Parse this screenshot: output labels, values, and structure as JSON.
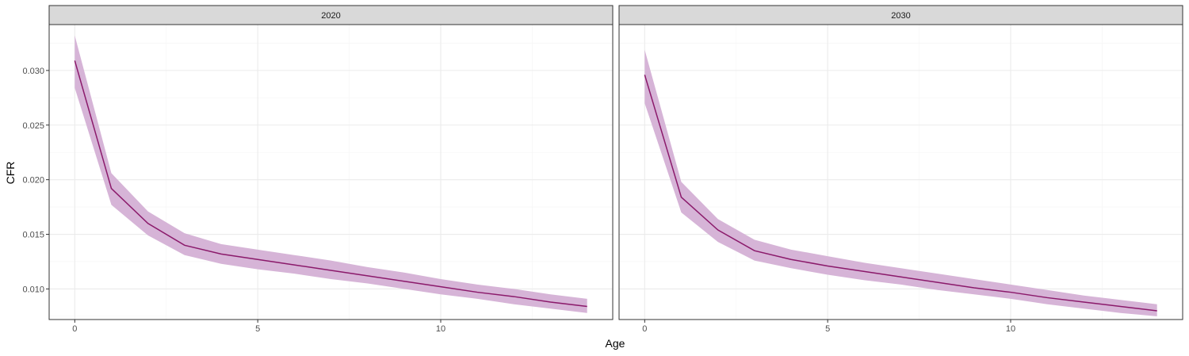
{
  "chart_data": {
    "type": "line",
    "xlabel": "Age",
    "ylabel": "CFR",
    "xlim": [
      -0.7,
      14.7
    ],
    "ylim": [
      0.0072,
      0.0342
    ],
    "x_ticks": [
      0,
      5,
      10
    ],
    "x_tick_labels": [
      "0",
      "5",
      "10"
    ],
    "y_ticks": [
      0.01,
      0.015,
      0.02,
      0.025,
      0.03
    ],
    "y_tick_labels": [
      "0.010",
      "0.015",
      "0.020",
      "0.025",
      "0.030"
    ],
    "grid": true,
    "legend": "none",
    "panels": [
      {
        "strip_label": "2020",
        "x": [
          0,
          1,
          2,
          3,
          4,
          5,
          6,
          7,
          8,
          9,
          10,
          11,
          12,
          13,
          14
        ],
        "mean": [
          0.0309,
          0.0192,
          0.016,
          0.014,
          0.0132,
          0.0127,
          0.0122,
          0.0117,
          0.0112,
          0.0107,
          0.0102,
          0.0097,
          0.0093,
          0.0088,
          0.0084
        ],
        "lower": [
          0.0284,
          0.0177,
          0.0149,
          0.0131,
          0.0123,
          0.0118,
          0.0114,
          0.0109,
          0.0105,
          0.01,
          0.0095,
          0.0091,
          0.0086,
          0.0082,
          0.0078
        ],
        "upper": [
          0.0332,
          0.0206,
          0.0171,
          0.0151,
          0.0141,
          0.0136,
          0.0131,
          0.0126,
          0.012,
          0.0115,
          0.0109,
          0.0104,
          0.01,
          0.0095,
          0.0091
        ]
      },
      {
        "strip_label": "2030",
        "x": [
          0,
          1,
          2,
          3,
          4,
          5,
          6,
          7,
          8,
          9,
          10,
          11,
          12,
          13,
          14
        ],
        "mean": [
          0.0296,
          0.0184,
          0.0154,
          0.0135,
          0.0127,
          0.0121,
          0.0116,
          0.0111,
          0.0106,
          0.0101,
          0.0097,
          0.0092,
          0.0088,
          0.0084,
          0.008
        ],
        "lower": [
          0.027,
          0.017,
          0.0143,
          0.0126,
          0.0119,
          0.0113,
          0.0108,
          0.0104,
          0.0099,
          0.0095,
          0.0091,
          0.0086,
          0.0082,
          0.0078,
          0.0075
        ],
        "upper": [
          0.0319,
          0.0198,
          0.0164,
          0.0145,
          0.0136,
          0.013,
          0.0124,
          0.0119,
          0.0114,
          0.0109,
          0.0104,
          0.0099,
          0.0094,
          0.009,
          0.0086
        ]
      }
    ],
    "colors": {
      "line": "#8B1A6B",
      "ribbon": "#D6B4D7",
      "strip_bg": "#D9D9D9",
      "panel_border": "#333333",
      "grid_major": "#EBEBEB",
      "grid_minor": "#F5F5F5"
    }
  }
}
